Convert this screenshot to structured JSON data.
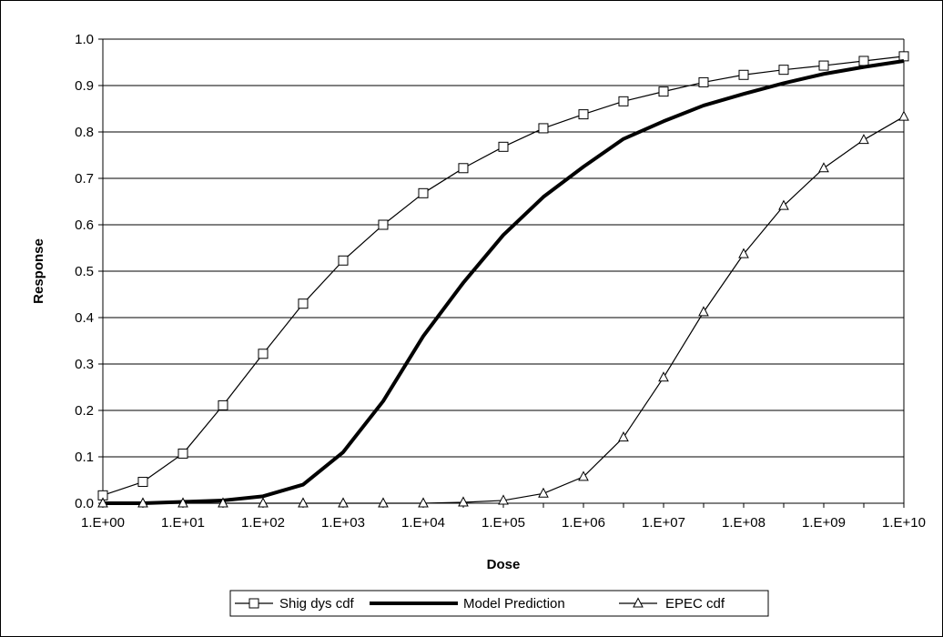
{
  "chart_data": {
    "type": "line",
    "title": "",
    "xlabel": "Dose",
    "ylabel": "Response",
    "x_scale": "log",
    "xlim": [
      1,
      10000000000
    ],
    "ylim": [
      0,
      1
    ],
    "grid": {
      "horizontal": true,
      "vertical": false
    },
    "legend_position": "bottom",
    "x_ticks": [
      {
        "value": 1,
        "label": "1.E+00"
      },
      {
        "value": 10,
        "label": "1.E+01"
      },
      {
        "value": 100,
        "label": "1.E+02"
      },
      {
        "value": 1000,
        "label": "1.E+03"
      },
      {
        "value": 10000,
        "label": "1.E+04"
      },
      {
        "value": 100000,
        "label": "1.E+05"
      },
      {
        "value": 1000000,
        "label": "1.E+06"
      },
      {
        "value": 10000000,
        "label": "1.E+07"
      },
      {
        "value": 100000000,
        "label": "1.E+08"
      },
      {
        "value": 1000000000,
        "label": "1.E+09"
      },
      {
        "value": 10000000000,
        "label": "1.E+10"
      }
    ],
    "y_ticks": [
      {
        "value": 0.0,
        "label": "0.0"
      },
      {
        "value": 0.1,
        "label": "0.1"
      },
      {
        "value": 0.2,
        "label": "0.2"
      },
      {
        "value": 0.3,
        "label": "0.3"
      },
      {
        "value": 0.4,
        "label": "0.4"
      },
      {
        "value": 0.5,
        "label": "0.5"
      },
      {
        "value": 0.6,
        "label": "0.6"
      },
      {
        "value": 0.7,
        "label": "0.7"
      },
      {
        "value": 0.8,
        "label": "0.8"
      },
      {
        "value": 0.9,
        "label": "0.9"
      },
      {
        "value": 1.0,
        "label": "1.0"
      }
    ],
    "series": [
      {
        "name": "Shig dys cdf",
        "marker": "square",
        "color": "#000000",
        "points": [
          {
            "x": 1,
            "y": 0.017
          },
          {
            "x": 3.16,
            "y": 0.046
          },
          {
            "x": 10,
            "y": 0.107
          },
          {
            "x": 31.6,
            "y": 0.211
          },
          {
            "x": 100,
            "y": 0.322
          },
          {
            "x": 316,
            "y": 0.43
          },
          {
            "x": 1000,
            "y": 0.523
          },
          {
            "x": 3160,
            "y": 0.6
          },
          {
            "x": 10000,
            "y": 0.668
          },
          {
            "x": 31600,
            "y": 0.722
          },
          {
            "x": 100000,
            "y": 0.768
          },
          {
            "x": 316000,
            "y": 0.808
          },
          {
            "x": 1000000,
            "y": 0.838
          },
          {
            "x": 3160000,
            "y": 0.866
          },
          {
            "x": 10000000,
            "y": 0.887
          },
          {
            "x": 31600000,
            "y": 0.907
          },
          {
            "x": 100000000,
            "y": 0.923
          },
          {
            "x": 316000000,
            "y": 0.934
          },
          {
            "x": 1000000000,
            "y": 0.943
          },
          {
            "x": 3160000000,
            "y": 0.953
          },
          {
            "x": 10000000000,
            "y": 0.963
          }
        ]
      },
      {
        "name": "Model Prediction",
        "marker": "none",
        "color": "#000000",
        "points": [
          {
            "x": 1,
            "y": 0.0
          },
          {
            "x": 3.16,
            "y": 0.0
          },
          {
            "x": 10,
            "y": 0.003
          },
          {
            "x": 31.6,
            "y": 0.006
          },
          {
            "x": 100,
            "y": 0.015
          },
          {
            "x": 316,
            "y": 0.04
          },
          {
            "x": 1000,
            "y": 0.11
          },
          {
            "x": 3160,
            "y": 0.22
          },
          {
            "x": 10000,
            "y": 0.36
          },
          {
            "x": 31600,
            "y": 0.475
          },
          {
            "x": 100000,
            "y": 0.578
          },
          {
            "x": 316000,
            "y": 0.66
          },
          {
            "x": 1000000,
            "y": 0.725
          },
          {
            "x": 3160000,
            "y": 0.785
          },
          {
            "x": 10000000,
            "y": 0.823
          },
          {
            "x": 31600000,
            "y": 0.857
          },
          {
            "x": 100000000,
            "y": 0.882
          },
          {
            "x": 316000000,
            "y": 0.905
          },
          {
            "x": 1000000000,
            "y": 0.925
          },
          {
            "x": 3160000000,
            "y": 0.94
          },
          {
            "x": 10000000000,
            "y": 0.953
          }
        ]
      },
      {
        "name": "EPEC cdf",
        "marker": "triangle",
        "color": "#000000",
        "points": [
          {
            "x": 1,
            "y": 0.0
          },
          {
            "x": 3.16,
            "y": 0.0
          },
          {
            "x": 10,
            "y": 0.0
          },
          {
            "x": 31.6,
            "y": 0.0
          },
          {
            "x": 100,
            "y": 0.0
          },
          {
            "x": 316,
            "y": 0.0
          },
          {
            "x": 1000,
            "y": 0.0
          },
          {
            "x": 3160,
            "y": 0.0
          },
          {
            "x": 10000,
            "y": 0.0
          },
          {
            "x": 31600,
            "y": 0.002
          },
          {
            "x": 100000,
            "y": 0.006
          },
          {
            "x": 316000,
            "y": 0.021
          },
          {
            "x": 1000000,
            "y": 0.057
          },
          {
            "x": 3160000,
            "y": 0.142
          },
          {
            "x": 10000000,
            "y": 0.271
          },
          {
            "x": 31600000,
            "y": 0.412
          },
          {
            "x": 100000000,
            "y": 0.537
          },
          {
            "x": 316000000,
            "y": 0.641
          },
          {
            "x": 1000000000,
            "y": 0.722
          },
          {
            "x": 3160000000,
            "y": 0.783
          },
          {
            "x": 10000000000,
            "y": 0.833
          }
        ]
      }
    ]
  }
}
